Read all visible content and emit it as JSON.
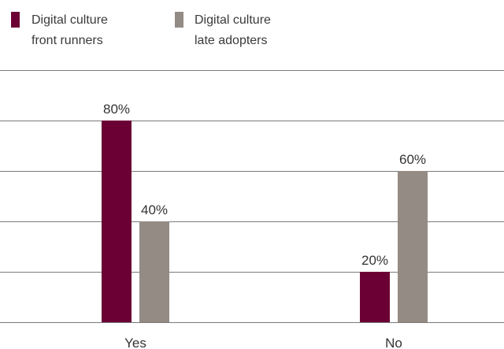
{
  "chart_data": {
    "type": "bar",
    "categories": [
      "Yes",
      "No"
    ],
    "series": [
      {
        "name": "Digital culture front runners",
        "legend_lines": [
          "Digital culture",
          "front runners"
        ],
        "values": [
          80,
          20
        ],
        "color": "#6b0034"
      },
      {
        "name": "Digital culture late adopters",
        "legend_lines": [
          "Digital culture",
          "late adopters"
        ],
        "values": [
          40,
          60
        ],
        "color": "#948b84"
      }
    ],
    "value_labels": [
      [
        "80%",
        "20%"
      ],
      [
        "40%",
        "60%"
      ]
    ],
    "ylim": [
      0,
      100
    ],
    "grid": true,
    "legend_position": "top-left",
    "title": "",
    "xlabel": "",
    "ylabel": ""
  }
}
